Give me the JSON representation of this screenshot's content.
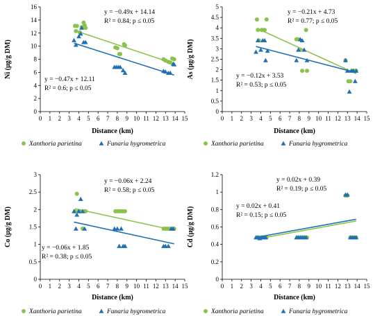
{
  "colors": {
    "xanthoria": "#8bc34a",
    "funaria": "#1f6fb5",
    "axis": "#000000"
  },
  "chart_data": [
    {
      "type": "scatter",
      "ylabel": "Ni (μg/g DM)",
      "xlabel": "Distance (km)",
      "xlim": [
        0,
        15
      ],
      "ylim": [
        0,
        16
      ],
      "x_ticks": [
        "0",
        "1",
        "2",
        "3",
        "4",
        "5",
        "6",
        "7",
        "8",
        "9",
        "10",
        "11",
        "12",
        "13",
        "14",
        "15"
      ],
      "y_ticks": [
        "0",
        "2",
        "4",
        "6",
        "8",
        "10",
        "12",
        "14",
        "16"
      ],
      "legend": [
        "Xanthoria parietina",
        "Funaria hygrometrica"
      ],
      "series": [
        {
          "name": "Xanthoria parietina",
          "marker": "circle",
          "points": [
            [
              3.6,
              13.1
            ],
            [
              3.7,
              12.3
            ],
            [
              3.8,
              13.1
            ],
            [
              4.1,
              12.1
            ],
            [
              4.3,
              12.9
            ],
            [
              4.5,
              13.6
            ],
            [
              4.6,
              13.2
            ],
            [
              4.7,
              12.8
            ],
            [
              7.8,
              9.8
            ],
            [
              8.0,
              9.7
            ],
            [
              8.2,
              8.8
            ],
            [
              8.3,
              8.8
            ],
            [
              8.7,
              10.3
            ],
            [
              8.8,
              10.1
            ],
            [
              12.8,
              8.0
            ],
            [
              13.0,
              7.8
            ],
            [
              13.3,
              7.6
            ],
            [
              13.5,
              7.5
            ],
            [
              13.7,
              8.1
            ],
            [
              13.9,
              8.0
            ]
          ],
          "trend": {
            "slope": -0.49,
            "intercept": 14.14,
            "x_range": [
              3.6,
              13.9
            ]
          }
        },
        {
          "name": "Funaria hygrometrica",
          "marker": "triangle",
          "points": [
            [
              3.5,
              10.9
            ],
            [
              3.7,
              10.2
            ],
            [
              4.0,
              11.5
            ],
            [
              4.2,
              11.9
            ],
            [
              4.3,
              12.8
            ],
            [
              4.5,
              10.6
            ],
            [
              4.7,
              10.6
            ],
            [
              7.7,
              6.8
            ],
            [
              7.9,
              6.8
            ],
            [
              8.1,
              6.8
            ],
            [
              8.3,
              6.8
            ],
            [
              8.6,
              6.3
            ],
            [
              8.8,
              5.9
            ],
            [
              12.8,
              6.2
            ],
            [
              13.0,
              6.1
            ],
            [
              13.3,
              5.9
            ],
            [
              13.5,
              5.9
            ],
            [
              13.8,
              7.3
            ],
            [
              13.9,
              7.2
            ]
          ],
          "trend": {
            "slope": -0.47,
            "intercept": 12.11,
            "x_range": [
              3.5,
              13.9
            ]
          }
        }
      ],
      "annotations": [
        {
          "lines": [
            "y = −0.49x + 14.14",
            "R² = 0.84; p ≤ 0.05"
          ]
        },
        {
          "lines": [
            "y = −0.47x + 12.11",
            "R² = 0.6; p ≤ 0.05"
          ]
        }
      ]
    },
    {
      "type": "scatter",
      "ylabel": "As (μg/g DM)",
      "xlabel": "Distance (km)",
      "xlim": [
        0,
        15
      ],
      "ylim": [
        0,
        5
      ],
      "x_ticks": [
        "0",
        "1",
        "2",
        "3",
        "4",
        "5",
        "6",
        "7",
        "8",
        "9",
        "10",
        "11",
        "12",
        "13",
        "14",
        "15"
      ],
      "y_ticks": [
        "0",
        "0.5",
        "1",
        "1.5",
        "2",
        "2.5",
        "3",
        "3.5",
        "4",
        "4.5",
        "5"
      ],
      "legend": [
        "Xanthoria parietina",
        "Funaria hygrometrica"
      ],
      "series": [
        {
          "name": "Xanthoria parietina",
          "marker": "circle",
          "points": [
            [
              3.6,
              4.4
            ],
            [
              3.7,
              3.9
            ],
            [
              3.8,
              3.4
            ],
            [
              4.1,
              3.9
            ],
            [
              4.2,
              3.9
            ],
            [
              4.4,
              3.9
            ],
            [
              4.6,
              4.4
            ],
            [
              7.7,
              3.45
            ],
            [
              7.9,
              3.45
            ],
            [
              8.1,
              2.95
            ],
            [
              8.3,
              1.95
            ],
            [
              8.7,
              3.9
            ],
            [
              8.8,
              1.95
            ],
            [
              12.8,
              2.45
            ],
            [
              13.1,
              1.45
            ],
            [
              13.3,
              1.45
            ],
            [
              13.5,
              1.95
            ],
            [
              13.7,
              1.95
            ],
            [
              13.9,
              1.95
            ]
          ],
          "trend": {
            "slope": -0.21,
            "intercept": 4.73,
            "x_range": [
              3.6,
              13.9
            ]
          }
        },
        {
          "name": "Funaria hygrometrica",
          "marker": "triangle",
          "points": [
            [
              3.5,
              2.85
            ],
            [
              3.7,
              3.4
            ],
            [
              4.0,
              2.95
            ],
            [
              4.2,
              3.4
            ],
            [
              4.4,
              3.4
            ],
            [
              4.5,
              2.45
            ],
            [
              4.7,
              2.9
            ],
            [
              7.7,
              2.45
            ],
            [
              7.9,
              2.95
            ],
            [
              8.1,
              3.45
            ],
            [
              8.3,
              3.4
            ],
            [
              8.5,
              2.95
            ],
            [
              8.8,
              2.45
            ],
            [
              12.8,
              2.45
            ],
            [
              13.0,
              1.95
            ],
            [
              13.2,
              0.95
            ],
            [
              13.4,
              1.95
            ],
            [
              13.6,
              1.95
            ],
            [
              13.8,
              1.45
            ],
            [
              13.9,
              1.95
            ]
          ],
          "trend": {
            "slope": -0.12,
            "intercept": 3.53,
            "x_range": [
              3.5,
              13.9
            ]
          }
        }
      ],
      "annotations": [
        {
          "lines": [
            "y = −0.21x + 4.73",
            "R² = 0.77; p ≤ 0.05"
          ]
        },
        {
          "lines": [
            "y = −0.12x + 3.53",
            "R² = 0.53; p ≤ 0.05"
          ]
        }
      ]
    },
    {
      "type": "scatter",
      "ylabel": "Co (μg/g DM)",
      "xlabel": "Distance (km)",
      "xlim": [
        0,
        15
      ],
      "ylim": [
        0,
        3
      ],
      "x_ticks": [
        "0",
        "1",
        "2",
        "3",
        "4",
        "5",
        "6",
        "7",
        "8",
        "9",
        "10",
        "11",
        "12",
        "13",
        "14",
        "15"
      ],
      "y_ticks": [
        "0",
        "0.5",
        "1",
        "1.5",
        "2",
        "2.5",
        "3"
      ],
      "legend": [
        "Xanthoria parietina",
        "Funaria hygrometrica"
      ],
      "series": [
        {
          "name": "Xanthoria parietina",
          "marker": "circle",
          "points": [
            [
              3.6,
              1.95
            ],
            [
              3.8,
              2.45
            ],
            [
              4.0,
              1.95
            ],
            [
              4.2,
              1.95
            ],
            [
              4.4,
              1.45
            ],
            [
              4.6,
              1.95
            ],
            [
              4.7,
              1.95
            ],
            [
              7.8,
              1.95
            ],
            [
              8.0,
              1.95
            ],
            [
              8.2,
              1.95
            ],
            [
              8.4,
              1.95
            ],
            [
              8.6,
              1.95
            ],
            [
              8.8,
              1.95
            ],
            [
              12.8,
              1.45
            ],
            [
              13.0,
              1.45
            ],
            [
              13.2,
              1.45
            ],
            [
              13.4,
              1.45
            ],
            [
              13.6,
              1.45
            ],
            [
              13.8,
              1.45
            ],
            [
              13.9,
              1.45
            ]
          ],
          "trend": {
            "slope": -0.06,
            "intercept": 2.24,
            "x_range": [
              3.6,
              13.9
            ]
          }
        },
        {
          "name": "Funaria hygrometrica",
          "marker": "triangle",
          "points": [
            [
              3.5,
              1.95
            ],
            [
              3.7,
              1.45
            ],
            [
              3.8,
              1.85
            ],
            [
              4.0,
              1.95
            ],
            [
              4.2,
              2.3
            ],
            [
              4.4,
              1.95
            ],
            [
              4.6,
              1.45
            ],
            [
              7.7,
              1.45
            ],
            [
              8.0,
              1.45
            ],
            [
              8.2,
              0.95
            ],
            [
              8.4,
              1.45
            ],
            [
              8.6,
              0.95
            ],
            [
              8.8,
              0.95
            ],
            [
              12.8,
              0.95
            ],
            [
              13.0,
              0.95
            ],
            [
              13.3,
              0.95
            ],
            [
              13.6,
              1.45
            ],
            [
              13.8,
              1.45
            ]
          ],
          "trend": {
            "slope": -0.06,
            "intercept": 1.85,
            "x_range": [
              3.5,
              13.9
            ]
          }
        }
      ],
      "annotations": [
        {
          "lines": [
            "y = −0.06x + 2.24",
            "R² = 0.58; p ≤ 0.05"
          ]
        },
        {
          "lines": [
            "y = −0.06x + 1.85",
            "R² = 0.38; p ≤ 0.05"
          ]
        }
      ]
    },
    {
      "type": "scatter",
      "ylabel": "Cd (μg/g DM)",
      "xlabel": "Distance (km)",
      "xlim": [
        0,
        15
      ],
      "ylim": [
        0,
        1.2
      ],
      "x_ticks": [
        "0",
        "1",
        "2",
        "3",
        "4",
        "5",
        "6",
        "7",
        "8",
        "9",
        "10",
        "11",
        "12",
        "13",
        "14",
        "15"
      ],
      "y_ticks": [
        "0",
        "0.2",
        "0.4",
        "0.6",
        "0.8",
        "1",
        "1.2"
      ],
      "legend": [
        "Xanthoria parietina",
        "Funaria hygrometrica"
      ],
      "series": [
        {
          "name": "Xanthoria parietina",
          "marker": "circle",
          "points": [
            [
              3.6,
              0.48
            ],
            [
              3.8,
              0.48
            ],
            [
              4.0,
              0.48
            ],
            [
              4.2,
              0.48
            ],
            [
              4.4,
              0.48
            ],
            [
              4.6,
              0.48
            ],
            [
              7.8,
              0.48
            ],
            [
              8.0,
              0.48
            ],
            [
              8.2,
              0.48
            ],
            [
              8.4,
              0.48
            ],
            [
              8.6,
              0.48
            ],
            [
              8.8,
              0.48
            ],
            [
              12.8,
              0.96
            ],
            [
              13.0,
              0.96
            ],
            [
              13.3,
              0.48
            ],
            [
              13.5,
              0.48
            ],
            [
              13.7,
              0.48
            ],
            [
              13.9,
              0.48
            ]
          ],
          "trend": {
            "slope": 0.02,
            "intercept": 0.39,
            "x_range": [
              3.6,
              13.9
            ]
          }
        },
        {
          "name": "Funaria hygrometrica",
          "marker": "triangle",
          "points": [
            [
              3.5,
              0.48
            ],
            [
              3.7,
              0.48
            ],
            [
              3.9,
              0.47
            ],
            [
              4.1,
              0.48
            ],
            [
              4.3,
              0.48
            ],
            [
              4.5,
              0.48
            ],
            [
              7.7,
              0.48
            ],
            [
              7.9,
              0.48
            ],
            [
              8.1,
              0.48
            ],
            [
              8.3,
              0.48
            ],
            [
              8.5,
              0.48
            ],
            [
              8.7,
              0.48
            ],
            [
              12.8,
              0.97
            ],
            [
              13.0,
              0.97
            ],
            [
              13.3,
              0.48
            ],
            [
              13.5,
              0.48
            ],
            [
              13.7,
              0.48
            ],
            [
              13.9,
              0.48
            ]
          ],
          "trend": {
            "slope": 0.02,
            "intercept": 0.41,
            "x_range": [
              3.5,
              13.9
            ]
          }
        }
      ],
      "annotations": [
        {
          "lines": [
            "y = 0.02x + 0.39",
            "R² = 0.19; p ≤ 0.05"
          ]
        },
        {
          "lines": [
            "y = 0.02x + 0.41",
            "R² = 0.15; p ≤ 0.05"
          ]
        }
      ]
    }
  ]
}
